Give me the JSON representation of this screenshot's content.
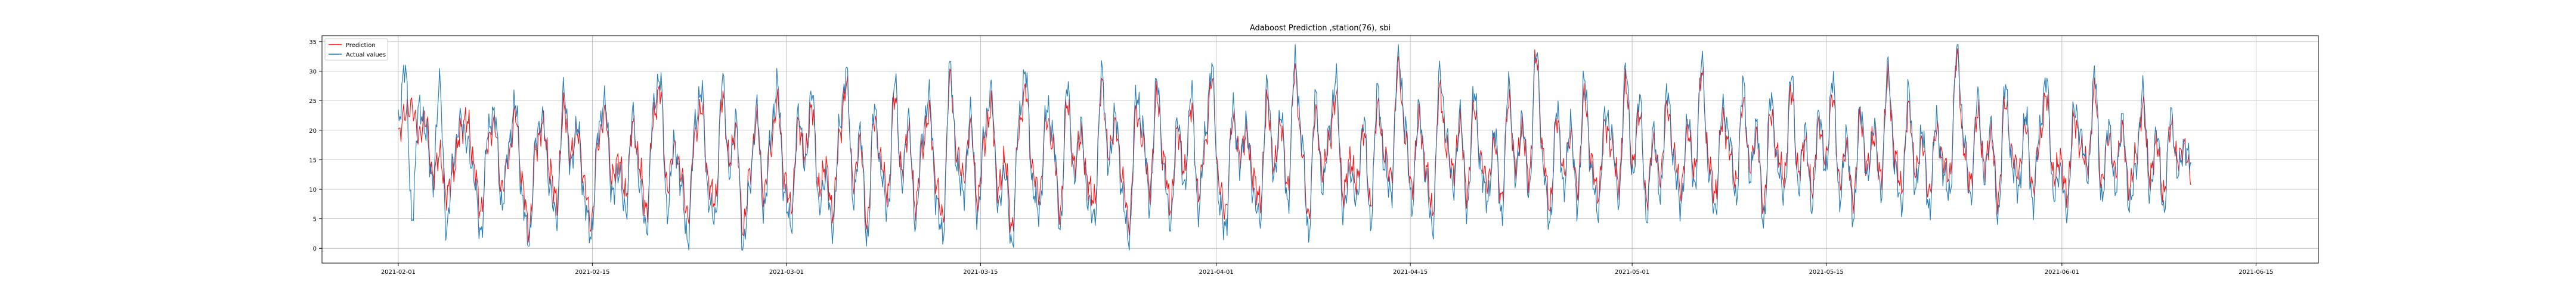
{
  "chart_data": {
    "type": "line",
    "title": "Adaboost Prediction ,station(76), sbi",
    "xlabel": "",
    "ylabel": "",
    "xlim": [
      "2021-01-26T12:00",
      "2021-06-19T12:00"
    ],
    "ylim": [
      -2.5,
      36.0
    ],
    "grid": true,
    "legend": "upper left",
    "x_ticks": [
      "2021-02-01",
      "2021-02-15",
      "2021-03-01",
      "2021-03-15",
      "2021-04-01",
      "2021-04-15",
      "2021-05-01",
      "2021-05-15",
      "2021-06-01",
      "2021-06-15"
    ],
    "y_ticks": [
      0,
      5,
      10,
      15,
      20,
      25,
      30,
      35
    ],
    "data_start": "2021-02-01T00:00",
    "data_end": "2021-06-10T08:00",
    "approx_point_count": 2000,
    "series": [
      {
        "name": "Prediction",
        "color": "#ff0000",
        "x_start": "2021-02-01",
        "x_end": "2021-06-10",
        "values": [
          19,
          23,
          24,
          19,
          22,
          12,
          16,
          9,
          13,
          20,
          22,
          14,
          6,
          18,
          21,
          10,
          15,
          23,
          11,
          3,
          17,
          21,
          13,
          8,
          24,
          16,
          20,
          11,
          4,
          18,
          23,
          12,
          15,
          9,
          21,
          14,
          6,
          22,
          27,
          10,
          17,
          13,
          5,
          19,
          24,
          11,
          8,
          26,
          15,
          20,
          3,
          13,
          22,
          9,
          17,
          25,
          12,
          7,
          21,
          16,
          24,
          10,
          14,
          6,
          19,
          28,
          11,
          18,
          4,
          22,
          15,
          9,
          26,
          13,
          20,
          7,
          17,
          23,
          11,
          5,
          29,
          16,
          12,
          21,
          8,
          18,
          24,
          10,
          15,
          3,
          20,
          27,
          13,
          9,
          22,
          17,
          6,
          25,
          14,
          19,
          11,
          8,
          28,
          16,
          21,
          12,
          4,
          23,
          18,
          10,
          26,
          15,
          7,
          20,
          13,
          24,
          9,
          17,
          29,
          11,
          6,
          22,
          16,
          19,
          12,
          8,
          25,
          14,
          21,
          10,
          30,
          17,
          5,
          23,
          13,
          18,
          26,
          9,
          15,
          11,
          20,
          7,
          24,
          16,
          12,
          31,
          19,
          10,
          22,
          14,
          6,
          27,
          17,
          13,
          21,
          9,
          24,
          15,
          11,
          18,
          8,
          25,
          14,
          20,
          12,
          33,
          16,
          7,
          22,
          13,
          19,
          10,
          26,
          15,
          9,
          21,
          17,
          11,
          28,
          14,
          23,
          8,
          18,
          12,
          24,
          16,
          10,
          20,
          13,
          30,
          15,
          9,
          22,
          17,
          11,
          25,
          14,
          19,
          7,
          23,
          16,
          12,
          27,
          13,
          18,
          10,
          21,
          15,
          26,
          11,
          17,
          8,
          22,
          14,
          19,
          12,
          29,
          16,
          10,
          24,
          13,
          18,
          9,
          20,
          15,
          12,
          33,
          17,
          11,
          23,
          14,
          19,
          8,
          25,
          16,
          13,
          21,
          10,
          18,
          26,
          12,
          15,
          9,
          22,
          17,
          14,
          27,
          11,
          19,
          13,
          20,
          10,
          16,
          24,
          12,
          18,
          9,
          21,
          15,
          17,
          12
        ]
      },
      {
        "name": "Actual values",
        "color": "#1f77b4",
        "x_start": "2021-02-01",
        "x_end": "2021-06-10",
        "values": [
          21,
          31,
          5,
          24,
          20,
          11,
          28,
          3,
          15,
          22,
          18,
          12,
          2,
          20,
          23,
          7,
          17,
          25,
          8,
          1,
          19,
          22,
          10,
          5,
          27,
          14,
          21,
          8,
          2,
          20,
          25,
          9,
          13,
          6,
          23,
          11,
          3,
          24,
          29,
          6,
          18,
          11,
          1,
          21,
          27,
          8,
          5,
          29,
          13,
          22,
          0,
          11,
          24,
          6,
          19,
          28,
          9,
          4,
          23,
          14,
          27,
          7,
          12,
          3,
          21,
          30,
          8,
          20,
          1,
          24,
          13,
          6,
          29,
          11,
          22,
          4,
          19,
          26,
          8,
          2,
          31,
          14,
          9,
          23,
          5,
          20,
          27,
          7,
          13,
          0,
          22,
          30,
          10,
          6,
          24,
          19,
          3,
          28,
          12,
          21,
          8,
          5,
          30,
          14,
          23,
          9,
          1,
          26,
          20,
          7,
          29,
          13,
          4,
          22,
          10,
          27,
          6,
          19,
          31,
          8,
          3,
          24,
          14,
          21,
          9,
          5,
          28,
          12,
          23,
          7,
          32,
          19,
          2,
          26,
          10,
          20,
          29,
          6,
          13,
          8,
          22,
          4,
          27,
          14,
          9,
          33,
          21,
          7,
          24,
          12,
          3,
          30,
          19,
          10,
          23,
          6,
          27,
          13,
          8,
          20,
          5,
          28,
          12,
          22,
          9,
          34,
          14,
          4,
          24,
          10,
          21,
          7,
          29,
          13,
          6,
          23,
          19,
          8,
          31,
          12,
          26,
          5,
          20,
          9,
          27,
          14,
          7,
          22,
          10,
          32,
          13,
          6,
          24,
          19,
          8,
          28,
          12,
          21,
          4,
          26,
          14,
          9,
          30,
          10,
          20,
          7,
          23,
          13,
          29,
          8,
          19,
          5,
          24,
          12,
          21,
          9,
          31,
          14,
          7,
          27,
          10,
          20,
          6,
          22,
          13,
          9,
          34,
          19,
          8,
          26,
          12,
          21,
          5,
          28,
          14,
          10,
          23,
          7,
          20,
          29,
          9,
          13,
          6,
          24,
          19,
          12,
          30,
          8,
          21,
          10,
          22,
          7,
          14,
          27,
          9,
          20,
          6,
          23,
          13,
          17,
          15
        ]
      }
    ]
  }
}
